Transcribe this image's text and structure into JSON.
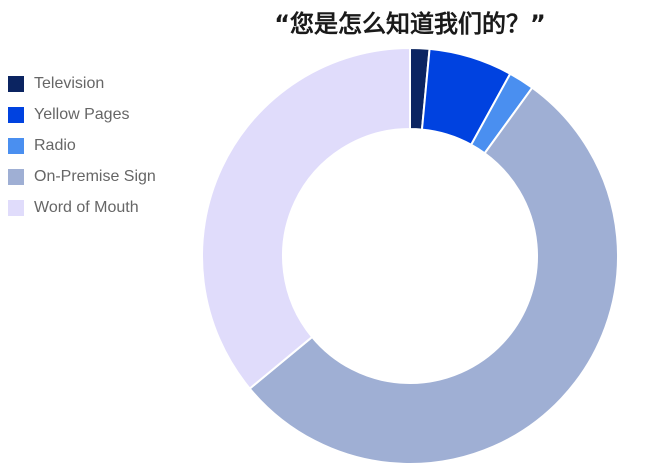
{
  "chart_data": {
    "type": "pie",
    "title": "“您是怎么知道我们的？”",
    "donut": true,
    "legend_position": "left",
    "categories": [
      "Television",
      "Yellow Pages",
      "Radio",
      "On-Premise Sign",
      "Word of Mouth"
    ],
    "values": [
      1.5,
      6.5,
      2,
      54,
      36
    ],
    "colors": [
      "#0b2461",
      "#0042e0",
      "#4a8ff0",
      "#9fafd4",
      "#e0dcfb"
    ]
  }
}
